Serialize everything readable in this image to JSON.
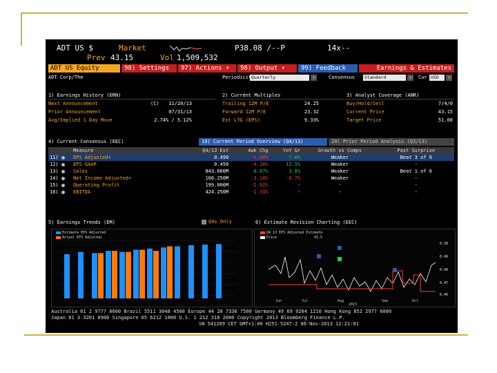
{
  "header": {
    "ticker": "ADT US $",
    "market_label": "Market",
    "price": "P38.08 /--P",
    "size": "14x--",
    "prev_label": "Prev",
    "prev_value": "43.15",
    "vol_label": "Vol",
    "vol_value": "1,509,532"
  },
  "toolbar": {
    "security": "ADT US Equity",
    "settings": "98) Settings",
    "actions": "97) Actions",
    "output": "98) Output",
    "feedback": "99) Feedback",
    "title": "Earnings & Estimates"
  },
  "sub": {
    "company": "ADT Corp/The",
    "periodicity_label": "Periodicity",
    "periodicity_value": "Quarterly",
    "consensus_label": "Consensus",
    "consensus_value": "Standard",
    "cur_label": "Cur",
    "cur_value": "USD"
  },
  "earnings_history": {
    "title": "1) Earnings History (ERN)",
    "rows": [
      {
        "label": "Next Announcement",
        "mid": "(C)",
        "value": "11/20/13"
      },
      {
        "label": "Prior Announcement",
        "mid": "",
        "value": "07/31/13"
      },
      {
        "label": "Avg/Implied 1 Day Move",
        "mid": "",
        "value": "2.74% / 5.12%"
      }
    ]
  },
  "current_multiples": {
    "title": "2) Current Multiples",
    "rows": [
      {
        "label": "Trailing 12M P/E",
        "value": "24.25"
      },
      {
        "label": "Forward 12M P/E",
        "value": "23.32"
      },
      {
        "label": "Est LTG (EPS)",
        "value": "9.33%"
      }
    ]
  },
  "analyst_coverage": {
    "title": "3) Analyst Coverage (ANR)",
    "rows": [
      {
        "label": "Buy/Hold/Sell",
        "value": "7/4/0"
      },
      {
        "label": "Current Price",
        "value": "43.15"
      },
      {
        "label": "Target Price",
        "value": "51.00"
      }
    ]
  },
  "consensus": {
    "title": "4) Current Consensus (EEC)",
    "tab_active": "19) Current Period Overview (Q4/13)",
    "tab_inactive": "20) Prior Period Analysis (Q3/13)",
    "columns": [
      "Measure",
      "Q4/13 Est",
      "4wk Chg",
      "YoY Gr",
      "Growth vs Comps",
      "Past Surprise"
    ],
    "rows": [
      {
        "num": "11)",
        "measure": "EPS Adjusted+",
        "est": "0.490",
        "chg": "-1.60%",
        "yoy": "7.0%",
        "growth": "Weaker",
        "surprise": "Beat 3 of 6"
      },
      {
        "num": "12)",
        "measure": "EPS GAAP",
        "est": "0.450",
        "chg": "-4.28%",
        "yoy": "12.5%",
        "growth": "Weaker",
        "surprise": "-"
      },
      {
        "num": "13)",
        "measure": "Sales",
        "est": "843.000M",
        "chg": "0.07%",
        "yoy": "3.8%",
        "growth": "Weaker",
        "surprise": "Beat 1 of 6"
      },
      {
        "num": "14)",
        "measure": "Net Income Adjusted+",
        "est": "100.250M",
        "chg": "-3.14%",
        "yoy": "-0.7%",
        "growth": "Weaker",
        "surprise": "-"
      },
      {
        "num": "15)",
        "measure": "Operating Profit",
        "est": "199.000M",
        "chg": "-2.02%",
        "yoy": "-",
        "growth": "-",
        "surprise": "-"
      },
      {
        "num": "16)",
        "measure": "EBITDA",
        "est": "424.250M",
        "chg": "-1.33%",
        "yoy": "-",
        "growth": "-",
        "surprise": "-"
      }
    ]
  },
  "earnings_trends": {
    "title": "5) Earnings Trends (EM)",
    "checkbox_label": "Q4s Only",
    "legend": [
      "Estimate EPS Adjusted",
      "Actual EPS Adjusted"
    ],
    "colors": {
      "estimate": "#1e90ff",
      "actual": "#ff7a00"
    }
  },
  "revision": {
    "title": "6) Estimate Revision Charting (EEC)",
    "legend": [
      "Q4 13 EPS Adjusted Estimate",
      "Price"
    ],
    "price_label": "41.5",
    "x_ticks": [
      "Jun",
      "Jul",
      "Aug",
      "Sep",
      "Oct"
    ],
    "x_year": "2013",
    "right_ticks": [
      "0.50",
      "0.49",
      "0.48",
      "0.47",
      "0.46"
    ]
  },
  "footer": {
    "line1": "Australia 61 2 9777 8600 Brazil 5511 3048 4500 Europe 44 20 7330 7500 Germany 49 69 9204 1210 Hong Kong 852 2977 6000",
    "line2": "Japan 81 3 3201 8900 Singapore 65 6212 1000 U.S. 1 212 318 2000 Copyright 2013 Bloomberg Finance L.P.",
    "line3": "SN 541209 CET GMT+1:00 H251-5247-2 06-Nov-2013 12:21:01"
  }
}
